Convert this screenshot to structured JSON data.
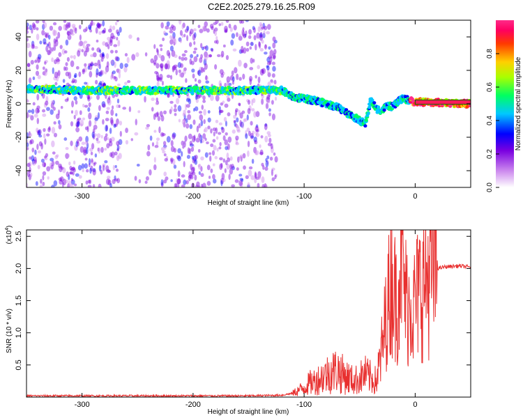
{
  "title": "C2E2.2025.279.16.25.R09",
  "chart_data": [
    {
      "type": "heatmap",
      "title": "C2E2.2025.279.16.25.R09",
      "xlabel": "Height of straight line (km)",
      "ylabel": "Frequency (Hz)",
      "xlim": [
        -350,
        50
      ],
      "ylim": [
        -50,
        50
      ],
      "xticks": [
        -300,
        -200,
        -100,
        0
      ],
      "yticks": [
        -40,
        -20,
        0,
        20,
        40
      ],
      "ridge": [
        {
          "x": -350,
          "y": 9
        },
        {
          "x": -300,
          "y": 8
        },
        {
          "x": -250,
          "y": 8
        },
        {
          "x": -200,
          "y": 8
        },
        {
          "x": -150,
          "y": 8
        },
        {
          "x": -120,
          "y": 8
        },
        {
          "x": -110,
          "y": 4
        },
        {
          "x": -100,
          "y": 3
        },
        {
          "x": -90,
          "y": 2
        },
        {
          "x": -80,
          "y": 0
        },
        {
          "x": -70,
          "y": -2
        },
        {
          "x": -60,
          "y": -6
        },
        {
          "x": -50,
          "y": -10
        },
        {
          "x": -45,
          "y": -12
        },
        {
          "x": -40,
          "y": 2
        },
        {
          "x": -35,
          "y": -3
        },
        {
          "x": -30,
          "y": -4
        },
        {
          "x": -25,
          "y": -1
        },
        {
          "x": -20,
          "y": -2
        },
        {
          "x": -15,
          "y": 2
        },
        {
          "x": -10,
          "y": 3
        },
        {
          "x": -5,
          "y": 2
        },
        {
          "x": 0,
          "y": 1
        },
        {
          "x": 10,
          "y": 1
        },
        {
          "x": 50,
          "y": 0
        }
      ],
      "colorbar": {
        "label": "Normalized spectral amplitude",
        "ticks": [
          "0.0",
          "0.2",
          "0.4",
          "0.6",
          "0.8"
        ],
        "range": [
          0,
          1
        ]
      }
    },
    {
      "type": "line",
      "xlabel": "Height of straight line (km)",
      "ylabel": "SNR (10 * v/v)",
      "ylabel_exponent": "(x10",
      "ylabel_exponent_power": "4",
      "ylabel_exponent_close": ")",
      "xlim": [
        -350,
        50
      ],
      "ylim": [
        0,
        2.6
      ],
      "xticks": [
        -300,
        -200,
        -100,
        0
      ],
      "yticks": [
        0.5,
        1.0,
        1.5,
        2.0,
        2.5
      ],
      "color": "#e8302f",
      "series": [
        {
          "name": "SNR",
          "x": [
            -350,
            -300,
            -250,
            -200,
            -150,
            -120,
            -110,
            -100,
            -95,
            -90,
            -85,
            -80,
            -75,
            -70,
            -65,
            -60,
            -55,
            -50,
            -45,
            -40,
            -35,
            -30,
            -28,
            -26,
            -24,
            -22,
            -20,
            -18,
            -16,
            -14,
            -12,
            -10,
            -8,
            -6,
            -4,
            -2,
            0,
            5,
            10,
            15,
            20,
            25,
            30,
            40,
            50
          ],
          "y": [
            0.02,
            0.02,
            0.02,
            0.02,
            0.02,
            0.03,
            0.06,
            0.15,
            0.22,
            0.25,
            0.3,
            0.35,
            0.4,
            0.42,
            0.35,
            0.3,
            0.25,
            0.3,
            0.35,
            0.3,
            0.25,
            0.7,
            1.0,
            1.3,
            1.5,
            1.8,
            2.0,
            1.5,
            1.6,
            2.1,
            2.4,
            1.7,
            1.5,
            1.4,
            1.6,
            1.3,
            1.5,
            1.7,
            1.85,
            1.95,
            2.0,
            2.02,
            2.03,
            2.04,
            2.02
          ]
        }
      ]
    }
  ]
}
